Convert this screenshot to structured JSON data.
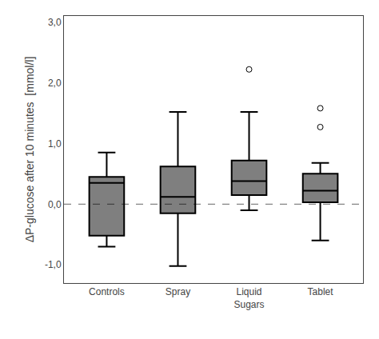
{
  "chart_data": {
    "type": "box",
    "categories": [
      "Controls",
      "Spray",
      "Liquid\nSugars",
      "Tablet"
    ],
    "boxes": [
      {
        "q1": -0.52,
        "median": 0.35,
        "q3": 0.45,
        "whislo": -0.7,
        "whishi": 0.85,
        "fliers": []
      },
      {
        "q1": -0.15,
        "median": 0.12,
        "q3": 0.62,
        "whislo": -1.02,
        "whishi": 1.52,
        "fliers": []
      },
      {
        "q1": 0.15,
        "median": 0.38,
        "q3": 0.72,
        "whislo": -0.1,
        "whishi": 1.52,
        "fliers": [
          2.22
        ]
      },
      {
        "q1": 0.03,
        "median": 0.22,
        "q3": 0.5,
        "whislo": -0.6,
        "whishi": 0.68,
        "fliers": [
          1.27,
          1.58
        ]
      }
    ],
    "ylabel": "ΔP-glucose after 10 minutes  [mmol/l]",
    "ylim": [
      -1.3,
      3.1
    ],
    "yticks": [
      {
        "value": -1.0,
        "label": "-1,0"
      },
      {
        "value": 0.0,
        "label": "0,0"
      },
      {
        "value": 1.0,
        "label": "1,0"
      },
      {
        "value": 2.0,
        "label": "2,0"
      },
      {
        "value": 3.0,
        "label": "3,0"
      }
    ],
    "reference_lines": [
      {
        "y": 0.0,
        "line_style": "dashed"
      }
    ],
    "color": "#000000",
    "marker": "circle-open",
    "grid": false
  }
}
